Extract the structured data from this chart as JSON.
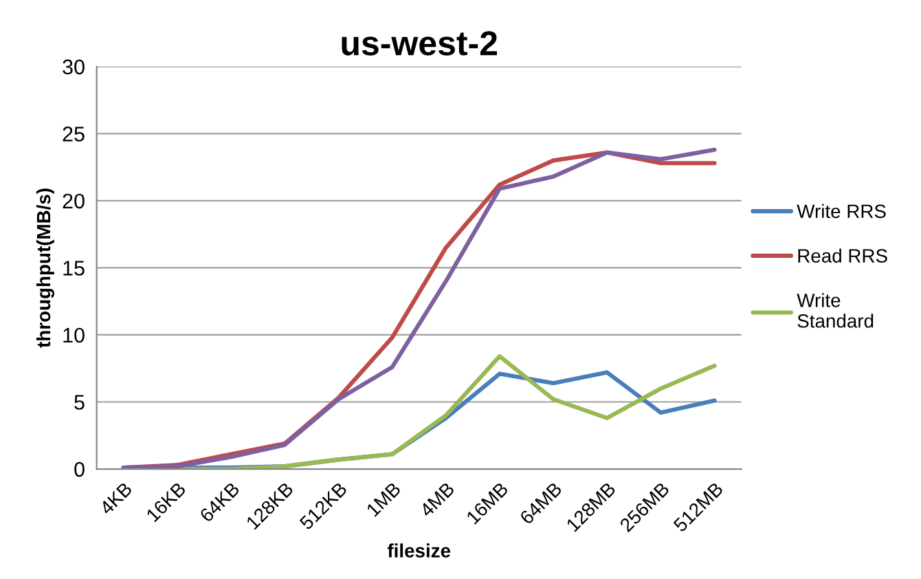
{
  "chart_data": {
    "type": "line",
    "title": "us-west-2",
    "xlabel": "filesize",
    "ylabel": "throughput(MB/s)",
    "categories": [
      "4KB",
      "16KB",
      "64KB",
      "128KB",
      "512KB",
      "1MB",
      "4MB",
      "16MB",
      "64MB",
      "128MB",
      "256MB",
      "512MB"
    ],
    "series": [
      {
        "name": "Write RRS",
        "color": "#4a7ebb",
        "values": [
          0.1,
          0.1,
          0.1,
          0.2,
          0.7,
          1.1,
          3.8,
          7.1,
          6.4,
          7.2,
          4.2,
          5.1
        ]
      },
      {
        "name": "Read RRS",
        "color": "#be4b48",
        "values": [
          0.1,
          0.3,
          1.1,
          1.9,
          5.3,
          9.8,
          16.5,
          21.2,
          23.0,
          23.6,
          22.8,
          22.8
        ]
      },
      {
        "name": "Write Standard",
        "color": "#98b954",
        "values": [
          0,
          0,
          0,
          0.2,
          0.7,
          1.1,
          4.0,
          8.4,
          5.2,
          3.8,
          6.0,
          7.7
        ]
      },
      {
        "color": "#7d60a0",
        "values": [
          0.1,
          0.2,
          0.9,
          1.8,
          5.2,
          7.6,
          14.0,
          20.9,
          21.8,
          23.6,
          23.1,
          23.8
        ]
      }
    ],
    "ylim": [
      0,
      30
    ],
    "yticks": [
      0,
      5,
      10,
      15,
      20,
      25,
      30
    ],
    "grid": "y",
    "legend": "right",
    "marker": "none",
    "line_style": "solid"
  }
}
